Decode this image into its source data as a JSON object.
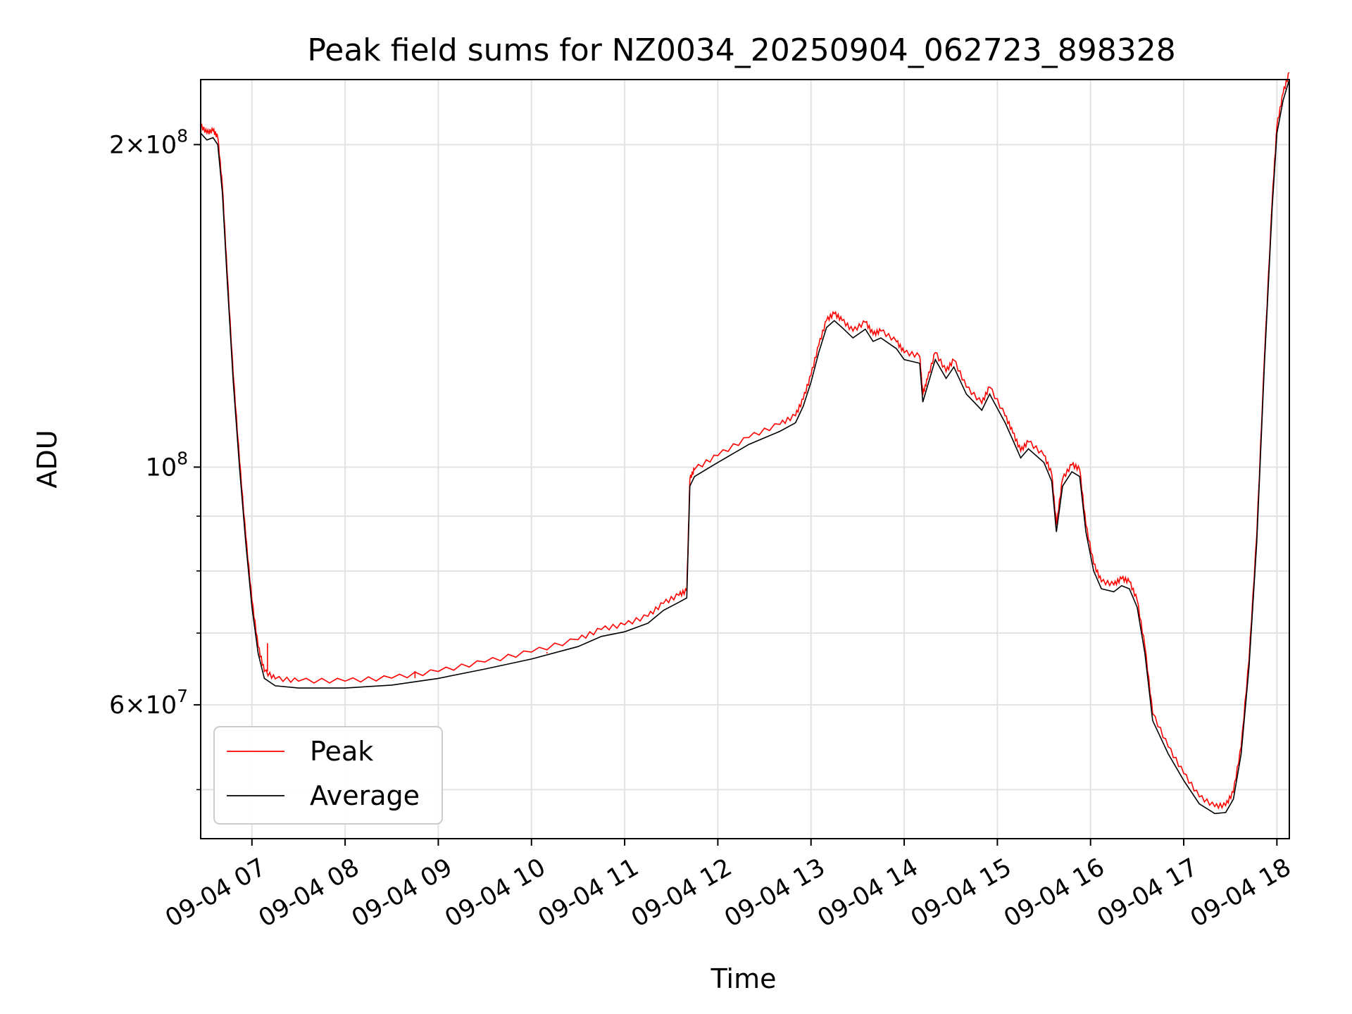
{
  "chart_data": {
    "type": "line",
    "title": "Peak field sums for NZ0034_20250904_062723_898328",
    "xlabel": "Time",
    "ylabel": "ADU",
    "yscale": "log",
    "grid": true,
    "legend_position": "lower-left",
    "xlim": [
      "2025-09-04 06:27",
      "2025-09-04 18:08"
    ],
    "ylim": [
      45000000,
      230000000
    ],
    "x_ticks": [
      {
        "value": "2025-09-04 07:00",
        "label": "09-04 07"
      },
      {
        "value": "2025-09-04 08:00",
        "label": "09-04 08"
      },
      {
        "value": "2025-09-04 09:00",
        "label": "09-04 09"
      },
      {
        "value": "2025-09-04 10:00",
        "label": "09-04 10"
      },
      {
        "value": "2025-09-04 11:00",
        "label": "09-04 11"
      },
      {
        "value": "2025-09-04 12:00",
        "label": "09-04 12"
      },
      {
        "value": "2025-09-04 13:00",
        "label": "09-04 13"
      },
      {
        "value": "2025-09-04 14:00",
        "label": "09-04 14"
      },
      {
        "value": "2025-09-04 15:00",
        "label": "09-04 15"
      },
      {
        "value": "2025-09-04 16:00",
        "label": "09-04 16"
      },
      {
        "value": "2025-09-04 17:00",
        "label": "09-04 17"
      },
      {
        "value": "2025-09-04 18:00",
        "label": "09-04 18"
      }
    ],
    "y_ticks": [
      {
        "value": 60000000,
        "mantissa": "6",
        "exponent": "7"
      },
      {
        "value": 100000000,
        "mantissa": "",
        "exponent": "8"
      },
      {
        "value": 200000000,
        "mantissa": "2",
        "exponent": "8"
      }
    ],
    "y_minor_ticks": [
      50000000,
      70000000,
      80000000,
      90000000
    ],
    "series": [
      {
        "name": "Average",
        "color": "#000000",
        "points": [
          [
            "2025-09-04 06:27",
            205000000
          ],
          [
            "2025-09-04 06:31",
            202000000
          ],
          [
            "2025-09-04 06:35",
            203000000
          ],
          [
            "2025-09-04 06:38",
            200000000
          ],
          [
            "2025-09-04 06:41",
            180000000
          ],
          [
            "2025-09-04 06:44",
            150000000
          ],
          [
            "2025-09-04 06:48",
            120000000
          ],
          [
            "2025-09-04 06:52",
            100000000
          ],
          [
            "2025-09-04 06:56",
            85000000
          ],
          [
            "2025-09-04 07:00",
            74000000
          ],
          [
            "2025-09-04 07:04",
            67000000
          ],
          [
            "2025-09-04 07:08",
            63500000
          ],
          [
            "2025-09-04 07:15",
            62500000
          ],
          [
            "2025-09-04 07:30",
            62200000
          ],
          [
            "2025-09-04 08:00",
            62200000
          ],
          [
            "2025-09-04 08:30",
            62600000
          ],
          [
            "2025-09-04 09:00",
            63500000
          ],
          [
            "2025-09-04 09:30",
            64800000
          ],
          [
            "2025-09-04 10:00",
            66200000
          ],
          [
            "2025-09-04 10:30",
            68000000
          ],
          [
            "2025-09-04 10:45",
            69500000
          ],
          [
            "2025-09-04 11:00",
            70200000
          ],
          [
            "2025-09-04 11:15",
            71500000
          ],
          [
            "2025-09-04 11:25",
            73500000
          ],
          [
            "2025-09-04 11:35",
            74800000
          ],
          [
            "2025-09-04 11:40",
            75500000
          ],
          [
            "2025-09-04 11:42",
            96000000
          ],
          [
            "2025-09-04 11:45",
            98000000
          ],
          [
            "2025-09-04 12:00",
            101000000
          ],
          [
            "2025-09-04 12:20",
            105000000
          ],
          [
            "2025-09-04 12:40",
            108000000
          ],
          [
            "2025-09-04 12:50",
            110000000
          ],
          [
            "2025-09-04 12:55",
            114000000
          ],
          [
            "2025-09-04 13:00",
            120000000
          ],
          [
            "2025-09-04 13:05",
            128000000
          ],
          [
            "2025-09-04 13:10",
            135000000
          ],
          [
            "2025-09-04 13:15",
            137000000
          ],
          [
            "2025-09-04 13:20",
            135000000
          ],
          [
            "2025-09-04 13:27",
            132000000
          ],
          [
            "2025-09-04 13:35",
            134500000
          ],
          [
            "2025-09-04 13:40",
            131000000
          ],
          [
            "2025-09-04 13:45",
            132000000
          ],
          [
            "2025-09-04 13:55",
            129000000
          ],
          [
            "2025-09-04 14:00",
            126000000
          ],
          [
            "2025-09-04 14:10",
            125000000
          ],
          [
            "2025-09-04 14:12",
            115000000
          ],
          [
            "2025-09-04 14:15",
            119000000
          ],
          [
            "2025-09-04 14:20",
            126000000
          ],
          [
            "2025-09-04 14:27",
            121000000
          ],
          [
            "2025-09-04 14:32",
            124000000
          ],
          [
            "2025-09-04 14:40",
            117000000
          ],
          [
            "2025-09-04 14:50",
            113000000
          ],
          [
            "2025-09-04 14:55",
            117000000
          ],
          [
            "2025-09-04 15:05",
            110000000
          ],
          [
            "2025-09-04 15:10",
            106000000
          ],
          [
            "2025-09-04 15:15",
            102000000
          ],
          [
            "2025-09-04 15:20",
            104000000
          ],
          [
            "2025-09-04 15:30",
            101000000
          ],
          [
            "2025-09-04 15:35",
            97000000
          ],
          [
            "2025-09-04 15:38",
            87000000
          ],
          [
            "2025-09-04 15:42",
            96000000
          ],
          [
            "2025-09-04 15:48",
            99000000
          ],
          [
            "2025-09-04 15:53",
            98000000
          ],
          [
            "2025-09-04 15:57",
            87000000
          ],
          [
            "2025-09-04 16:02",
            80000000
          ],
          [
            "2025-09-04 16:07",
            77000000
          ],
          [
            "2025-09-04 16:15",
            76500000
          ],
          [
            "2025-09-04 16:20",
            77500000
          ],
          [
            "2025-09-04 16:25",
            77000000
          ],
          [
            "2025-09-04 16:30",
            74000000
          ],
          [
            "2025-09-04 16:35",
            67000000
          ],
          [
            "2025-09-04 16:40",
            58000000
          ],
          [
            "2025-09-04 16:50",
            54000000
          ],
          [
            "2025-09-04 17:00",
            51000000
          ],
          [
            "2025-09-04 17:10",
            48500000
          ],
          [
            "2025-09-04 17:20",
            47500000
          ],
          [
            "2025-09-04 17:27",
            47600000
          ],
          [
            "2025-09-04 17:32",
            49000000
          ],
          [
            "2025-09-04 17:37",
            54000000
          ],
          [
            "2025-09-04 17:42",
            65000000
          ],
          [
            "2025-09-04 17:47",
            85000000
          ],
          [
            "2025-09-04 17:52",
            125000000
          ],
          [
            "2025-09-04 17:57",
            175000000
          ],
          [
            "2025-09-04 18:00",
            205000000
          ],
          [
            "2025-09-04 18:04",
            220000000
          ],
          [
            "2025-09-04 18:08",
            230000000
          ]
        ]
      },
      {
        "name": "Peak",
        "color": "#ff0000",
        "offset_ratio": 1.015,
        "spikes": [
          [
            "2025-09-04 07:10",
            68500000
          ],
          [
            "2025-09-04 08:45",
            64500000
          ],
          [
            "2025-09-04 10:10",
            67000000
          ]
        ]
      }
    ]
  }
}
